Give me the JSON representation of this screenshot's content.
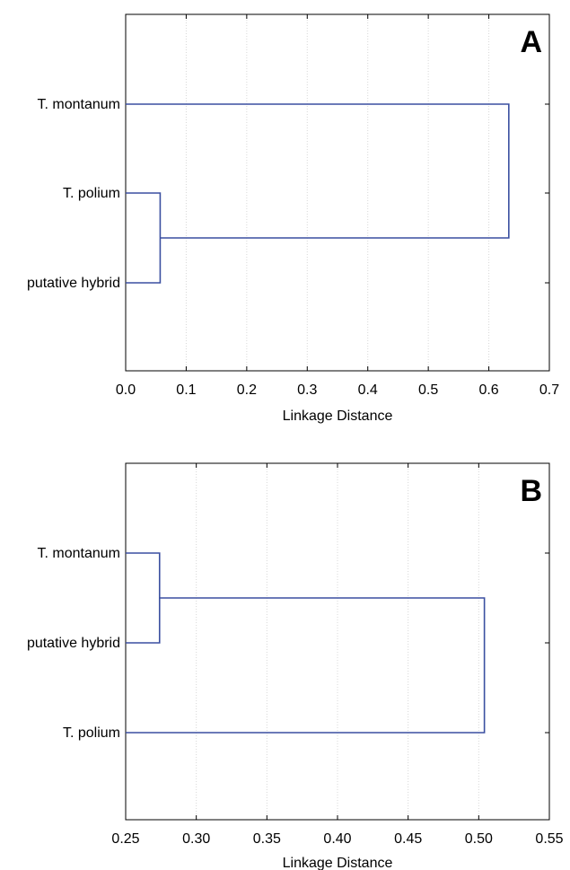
{
  "chart_data": [
    {
      "type": "dendrogram",
      "panel_label": "A",
      "xlabel": "Linkage Distance",
      "ylabel": "",
      "xlim": [
        0.0,
        0.7
      ],
      "x_ticks": [
        0.0,
        0.1,
        0.2,
        0.3,
        0.4,
        0.5,
        0.6,
        0.7
      ],
      "x_tick_labels": [
        "0.0",
        "0.1",
        "0.2",
        "0.3",
        "0.4",
        "0.5",
        "0.6",
        "0.7"
      ],
      "grid": true,
      "leaves": [
        "T. montanum",
        "T. polium",
        "putative hybrid"
      ],
      "merges": [
        {
          "left": "T. polium",
          "right": "putative hybrid",
          "distance": 0.057
        },
        {
          "left": "T. montanum",
          "right": "cluster1",
          "distance": 0.633
        }
      ],
      "line_color": "#3a4fa0"
    },
    {
      "type": "dendrogram",
      "panel_label": "B",
      "xlabel": "Linkage Distance",
      "ylabel": "",
      "xlim": [
        0.25,
        0.55
      ],
      "x_ticks": [
        0.25,
        0.3,
        0.35,
        0.4,
        0.45,
        0.5,
        0.55
      ],
      "x_tick_labels": [
        "0.25",
        "0.30",
        "0.35",
        "0.40",
        "0.45",
        "0.50",
        "0.55"
      ],
      "grid": true,
      "leaves": [
        "T. montanum",
        "putative hybrid",
        "T. polium"
      ],
      "merges": [
        {
          "left": "T. montanum",
          "right": "putative hybrid",
          "distance": 0.274
        },
        {
          "left": "cluster1",
          "right": "T. polium",
          "distance": 0.504
        }
      ],
      "line_color": "#3a4fa0"
    }
  ]
}
